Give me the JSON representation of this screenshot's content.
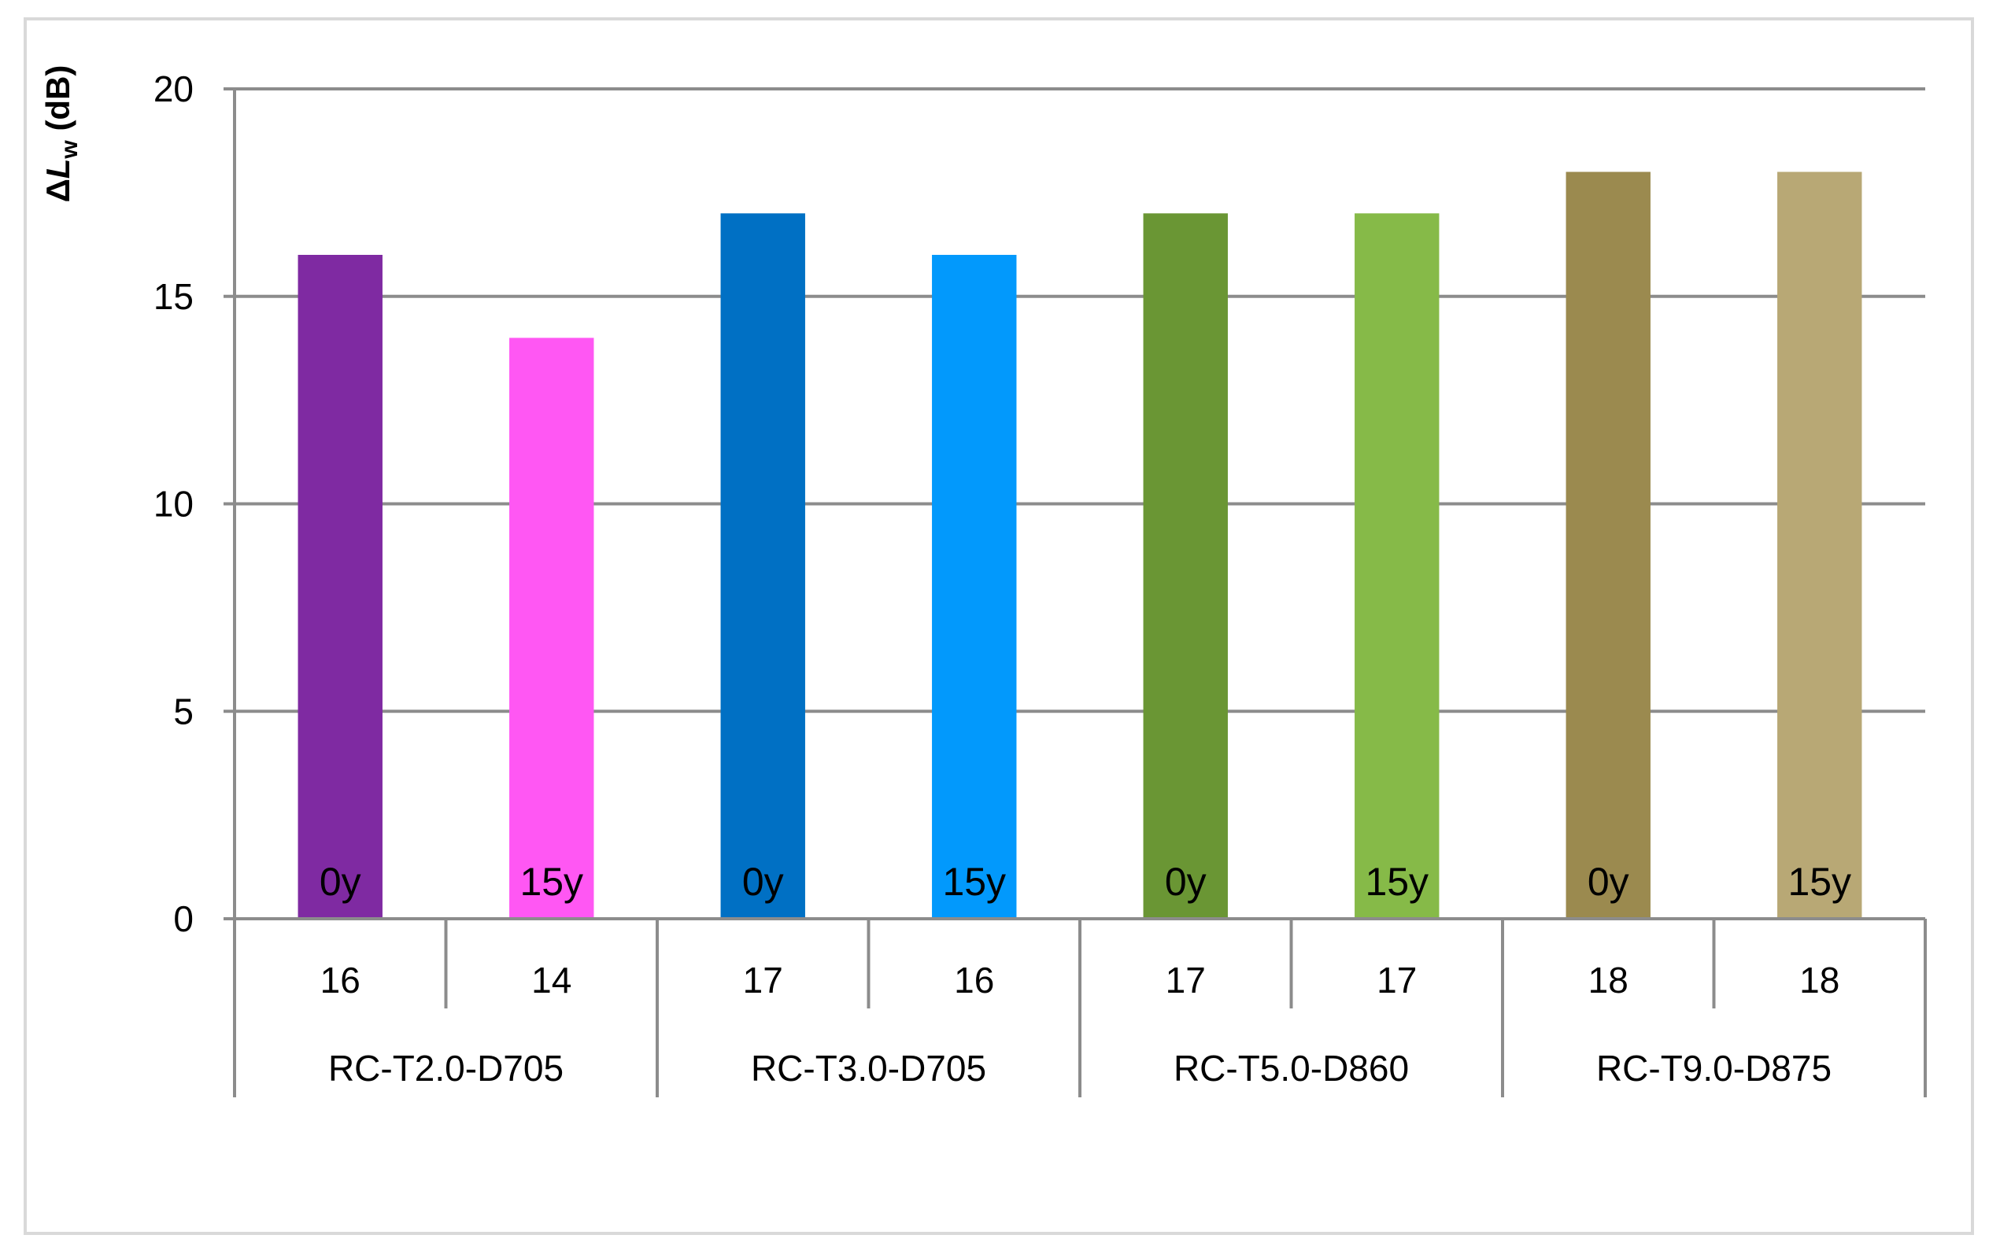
{
  "chart_data": {
    "type": "bar",
    "ylabel": {
      "symbol": "Δ",
      "var": "L",
      "sub": "w",
      "unit": " (dB)"
    },
    "ylim": [
      0,
      20
    ],
    "yticks": [
      0,
      5,
      10,
      15,
      20
    ],
    "grid": true,
    "legend": "none",
    "groups": [
      {
        "label": "RC-T2.0-D705",
        "bars": [
          {
            "value": 16,
            "value_label": "16",
            "inner_label": "0y",
            "color": "#7f2aa2"
          },
          {
            "value": 14,
            "value_label": "14",
            "inner_label": "15y",
            "color": "#ff57f3"
          }
        ]
      },
      {
        "label": "RC-T3.0-D705",
        "bars": [
          {
            "value": 17,
            "value_label": "17",
            "inner_label": "0y",
            "color": "#0070c4"
          },
          {
            "value": 16,
            "value_label": "16",
            "inner_label": "15y",
            "color": "#0299fc"
          }
        ]
      },
      {
        "label": "RC-T5.0-D860",
        "bars": [
          {
            "value": 17,
            "value_label": "17",
            "inner_label": "0y",
            "color": "#6a9634"
          },
          {
            "value": 17,
            "value_label": "17",
            "inner_label": "15y",
            "color": "#86ba48"
          }
        ]
      },
      {
        "label": "RC-T9.0-D875",
        "bars": [
          {
            "value": 18,
            "value_label": "18",
            "inner_label": "0y",
            "color": "#9b8a4f"
          },
          {
            "value": 18,
            "value_label": "18",
            "inner_label": "15y",
            "color": "#b8a875"
          }
        ]
      }
    ]
  }
}
